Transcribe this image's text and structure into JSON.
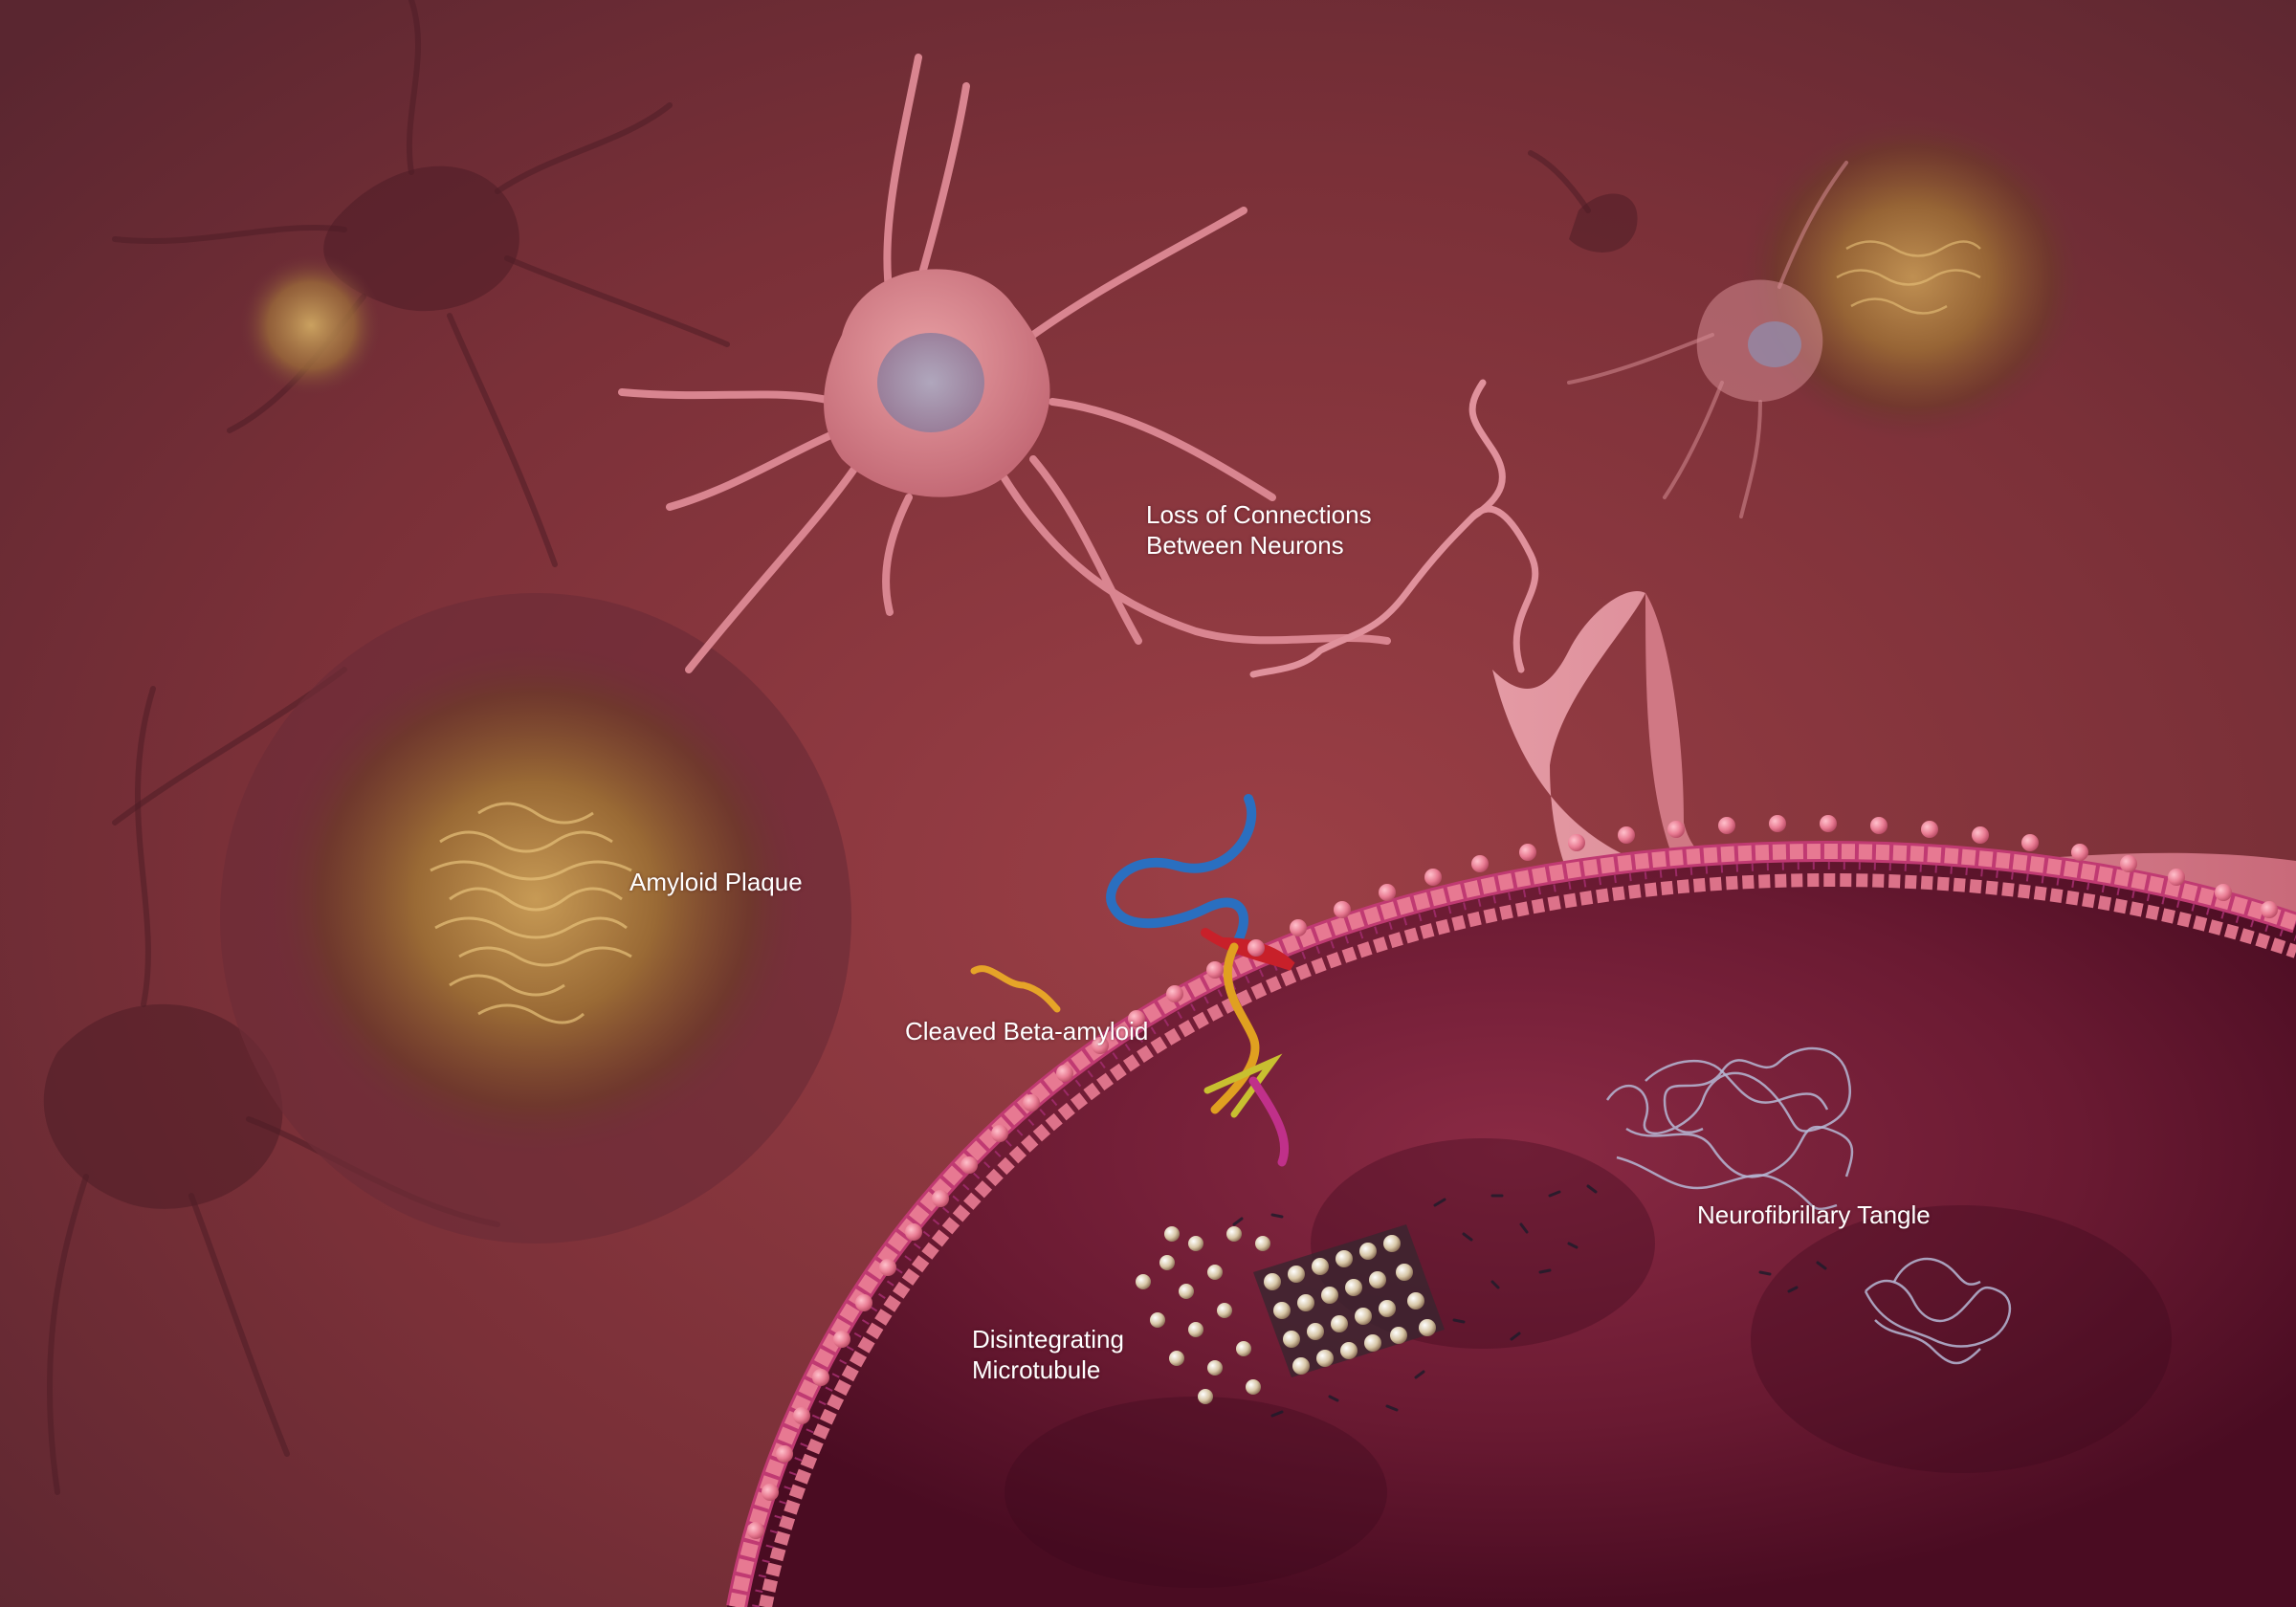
{
  "illustration": {
    "subject": "Alzheimer's disease brain changes",
    "colors": {
      "background": "#7a3038",
      "membrane_bead": "#e97c93",
      "membrane_tail": "#b0306a",
      "cell_interior": "#5a1026",
      "neuron": "#d98590",
      "plaque": "#8a5a2a",
      "protein_blue": "#2a6fc0",
      "protein_red": "#c8202a",
      "protein_yellow": "#e0a020",
      "protein_magenta": "#c0308a"
    }
  },
  "labels": {
    "loss_of_connections": {
      "line1": "Loss of Connections",
      "line2": "Between Neurons"
    },
    "amyloid_plaque": "Amyloid Plaque",
    "cleaved_beta_amyloid": "Cleaved Beta-amyloid",
    "neurofibrillary_tangle": "Neurofibrillary Tangle",
    "disintegrating_microtubule": {
      "line1": "Disintegrating",
      "line2": "Microtubule"
    }
  }
}
